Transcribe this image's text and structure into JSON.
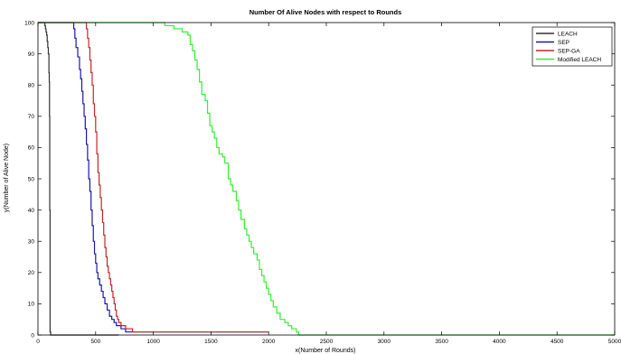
{
  "chart_data": {
    "type": "line",
    "title": "Number Of Alive Nodes with respect to Rounds",
    "xlabel": "x(Number of Rounds)",
    "ylabel": "y(Number of Alive Node)",
    "xlim": [
      0,
      5000
    ],
    "ylim": [
      0,
      100
    ],
    "xticks": [
      0,
      500,
      1000,
      1500,
      2000,
      2500,
      3000,
      3500,
      4000,
      4500,
      5000
    ],
    "yticks": [
      0,
      10,
      20,
      30,
      40,
      50,
      60,
      70,
      80,
      90,
      100
    ],
    "grid": false,
    "legend_position": "top-right",
    "series": [
      {
        "name": "LEACH",
        "color": "#333333",
        "points": [
          [
            0,
            100
          ],
          [
            55,
            100
          ],
          [
            60,
            99
          ],
          [
            65,
            98
          ],
          [
            70,
            97
          ],
          [
            75,
            96
          ],
          [
            80,
            94
          ],
          [
            85,
            92
          ],
          [
            90,
            90
          ],
          [
            95,
            84
          ],
          [
            98,
            81
          ],
          [
            100,
            70
          ],
          [
            102,
            40
          ],
          [
            105,
            1
          ],
          [
            110,
            0
          ],
          [
            700,
            0
          ]
        ]
      },
      {
        "name": "SEP",
        "color": "#1a1aa8",
        "points": [
          [
            0,
            100
          ],
          [
            300,
            100
          ],
          [
            310,
            98
          ],
          [
            320,
            95
          ],
          [
            330,
            92
          ],
          [
            345,
            89
          ],
          [
            360,
            85
          ],
          [
            370,
            82
          ],
          [
            380,
            78
          ],
          [
            390,
            74
          ],
          [
            400,
            70
          ],
          [
            410,
            66
          ],
          [
            420,
            61
          ],
          [
            430,
            56
          ],
          [
            440,
            50
          ],
          [
            450,
            46
          ],
          [
            460,
            40
          ],
          [
            470,
            35
          ],
          [
            480,
            30
          ],
          [
            490,
            26
          ],
          [
            500,
            23
          ],
          [
            510,
            20
          ],
          [
            520,
            18
          ],
          [
            535,
            16
          ],
          [
            550,
            14
          ],
          [
            565,
            12
          ],
          [
            580,
            10
          ],
          [
            600,
            8
          ],
          [
            620,
            6
          ],
          [
            640,
            5
          ],
          [
            660,
            4
          ],
          [
            680,
            3
          ],
          [
            720,
            2
          ],
          [
            760,
            1
          ],
          [
            1000,
            1
          ],
          [
            2000,
            1
          ]
        ]
      },
      {
        "name": "SEP-GA",
        "color": "#c0282a",
        "points": [
          [
            0,
            100
          ],
          [
            415,
            100
          ],
          [
            420,
            98
          ],
          [
            430,
            95
          ],
          [
            440,
            92
          ],
          [
            450,
            88
          ],
          [
            460,
            84
          ],
          [
            470,
            80
          ],
          [
            480,
            74
          ],
          [
            490,
            70
          ],
          [
            500,
            65
          ],
          [
            510,
            58
          ],
          [
            520,
            52
          ],
          [
            530,
            48
          ],
          [
            540,
            44
          ],
          [
            550,
            40
          ],
          [
            560,
            36
          ],
          [
            570,
            32
          ],
          [
            580,
            28
          ],
          [
            590,
            25
          ],
          [
            600,
            22
          ],
          [
            610,
            20
          ],
          [
            620,
            18
          ],
          [
            630,
            16
          ],
          [
            640,
            14
          ],
          [
            650,
            12
          ],
          [
            660,
            10
          ],
          [
            670,
            8
          ],
          [
            680,
            6
          ],
          [
            690,
            5
          ],
          [
            700,
            4
          ],
          [
            720,
            3
          ],
          [
            760,
            2
          ],
          [
            820,
            1
          ],
          [
            1000,
            1
          ],
          [
            2000,
            1
          ]
        ]
      },
      {
        "name": "Modified LEACH",
        "color": "#33ee33",
        "points": [
          [
            0,
            100
          ],
          [
            1060,
            100
          ],
          [
            1100,
            99
          ],
          [
            1180,
            98
          ],
          [
            1250,
            97
          ],
          [
            1300,
            96
          ],
          [
            1320,
            93
          ],
          [
            1340,
            91
          ],
          [
            1360,
            88
          ],
          [
            1380,
            85
          ],
          [
            1400,
            81
          ],
          [
            1420,
            77
          ],
          [
            1450,
            75
          ],
          [
            1470,
            71
          ],
          [
            1490,
            67
          ],
          [
            1510,
            65
          ],
          [
            1530,
            63
          ],
          [
            1550,
            60
          ],
          [
            1570,
            58
          ],
          [
            1600,
            57
          ],
          [
            1620,
            55
          ],
          [
            1650,
            50
          ],
          [
            1670,
            48
          ],
          [
            1690,
            46
          ],
          [
            1720,
            43
          ],
          [
            1740,
            40
          ],
          [
            1760,
            37
          ],
          [
            1790,
            34
          ],
          [
            1810,
            32
          ],
          [
            1830,
            30
          ],
          [
            1850,
            28
          ],
          [
            1870,
            26
          ],
          [
            1900,
            24
          ],
          [
            1920,
            21
          ],
          [
            1940,
            19
          ],
          [
            1960,
            17
          ],
          [
            1980,
            15
          ],
          [
            2000,
            13
          ],
          [
            2020,
            11
          ],
          [
            2040,
            9
          ],
          [
            2070,
            7
          ],
          [
            2100,
            5
          ],
          [
            2140,
            4
          ],
          [
            2170,
            3
          ],
          [
            2200,
            2
          ],
          [
            2240,
            1
          ],
          [
            2260,
            0
          ],
          [
            5000,
            0
          ]
        ]
      }
    ]
  }
}
